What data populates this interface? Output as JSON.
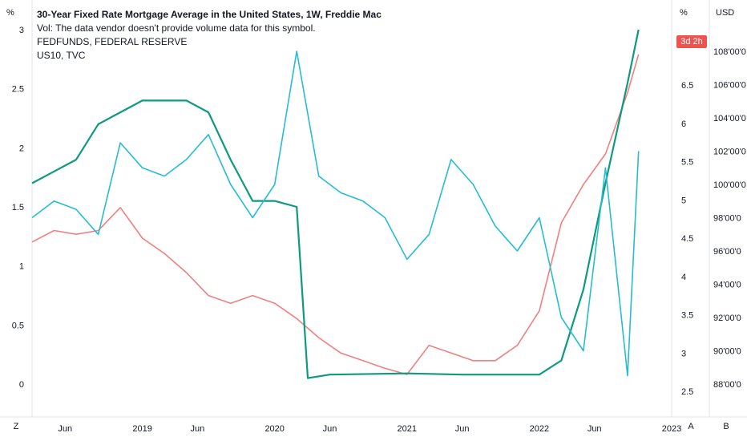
{
  "legend": {
    "title": "30-Year Fixed Rate Mortgage Average in the United States, 1W, Freddie Mac",
    "vol": "Vol: The data vendor doesn't provide volume data for this symbol.",
    "fedfunds": "FEDFUNDS, FEDERAL RESERVE",
    "us10": "US10, TVC"
  },
  "badge": "3d 2h",
  "axis_units": {
    "left": "%",
    "right_pct": "%",
    "right_usd": "USD"
  },
  "buttons": {
    "left": "Z",
    "auto": "A",
    "bottom": "B"
  },
  "colors": {
    "mortgage": "#f08080",
    "fedfunds": "#0e9a7e",
    "us10": "#26bcd1",
    "badge": "#ef5350"
  },
  "chart_data": {
    "type": "line",
    "x_ticks": [
      "Jun",
      "2019",
      "Jun",
      "2020",
      "Jun",
      "2021",
      "Jun",
      "2022",
      "Jun",
      "2023"
    ],
    "y_left_ticks": [
      "0",
      "0.5",
      "1",
      "1.5",
      "2",
      "2.5",
      "3"
    ],
    "y_right_ticks": [
      "2.5",
      "3",
      "3.5",
      "4",
      "4.5",
      "5",
      "5.5",
      "6",
      "6.5"
    ],
    "y_usd_ticks": [
      "88'00'0",
      "90'00'0",
      "92'00'0",
      "94'00'0",
      "96'00'0",
      "98'00'0",
      "100'00'0",
      "102'00'0",
      "104'00'0",
      "106'00'0",
      "108'00'0"
    ],
    "ylim_left": [
      0,
      3
    ],
    "ylim_right": [
      2.5,
      6.5
    ],
    "series": [
      {
        "name": "30-Year Fixed Rate Mortgage Average in the United States",
        "axis": "right",
        "x": [
          "2018-03",
          "2018-05",
          "2018-07",
          "2018-09",
          "2018-11",
          "2019-01",
          "2019-03",
          "2019-05",
          "2019-07",
          "2019-09",
          "2019-11",
          "2020-01",
          "2020-03",
          "2020-05",
          "2020-07",
          "2020-09",
          "2020-11",
          "2021-01",
          "2021-03",
          "2021-05",
          "2021-07",
          "2021-09",
          "2021-11",
          "2022-01",
          "2022-03",
          "2022-05",
          "2022-07",
          "2022-09",
          "2022-10"
        ],
        "values": [
          4.45,
          4.6,
          4.55,
          4.6,
          4.9,
          4.5,
          4.3,
          4.05,
          3.75,
          3.65,
          3.75,
          3.65,
          3.45,
          3.2,
          3.0,
          2.9,
          2.8,
          2.72,
          3.1,
          3.0,
          2.9,
          2.9,
          3.1,
          3.55,
          4.7,
          5.2,
          5.6,
          6.4,
          6.9
        ]
      },
      {
        "name": "FEDFUNDS",
        "axis": "left",
        "x": [
          "2018-03",
          "2018-05",
          "2018-07",
          "2018-09",
          "2018-11",
          "2019-01",
          "2019-03",
          "2019-05",
          "2019-07",
          "2019-09",
          "2019-11",
          "2020-01",
          "2020-03",
          "2020-04",
          "2020-06",
          "2021-01",
          "2021-06",
          "2022-01",
          "2022-03",
          "2022-05",
          "2022-07",
          "2022-09",
          "2022-10"
        ],
        "values": [
          1.7,
          1.8,
          1.9,
          2.2,
          2.3,
          2.4,
          2.4,
          2.4,
          2.3,
          1.9,
          1.55,
          1.55,
          1.5,
          0.05,
          0.08,
          0.09,
          0.08,
          0.08,
          0.2,
          0.8,
          1.7,
          2.55,
          3.0
        ]
      },
      {
        "name": "US10",
        "axis": "usd",
        "x": [
          "2018-03",
          "2018-05",
          "2018-07",
          "2018-09",
          "2018-11",
          "2019-01",
          "2019-03",
          "2019-05",
          "2019-07",
          "2019-09",
          "2019-11",
          "2020-01",
          "2020-03",
          "2020-05",
          "2020-07",
          "2020-09",
          "2020-11",
          "2021-01",
          "2021-03",
          "2021-05",
          "2021-07",
          "2021-09",
          "2021-11",
          "2022-01",
          "2022-03",
          "2022-05",
          "2022-07",
          "2022-09",
          "2022-10"
        ],
        "values": [
          98,
          99,
          98.5,
          97,
          102.5,
          101,
          100.5,
          101.5,
          103,
          100,
          98,
          100,
          108,
          100.5,
          99.5,
          99,
          98,
          95.5,
          97,
          101.5,
          100,
          97.5,
          96,
          98,
          92,
          90,
          101,
          88.5,
          102
        ]
      }
    ]
  }
}
